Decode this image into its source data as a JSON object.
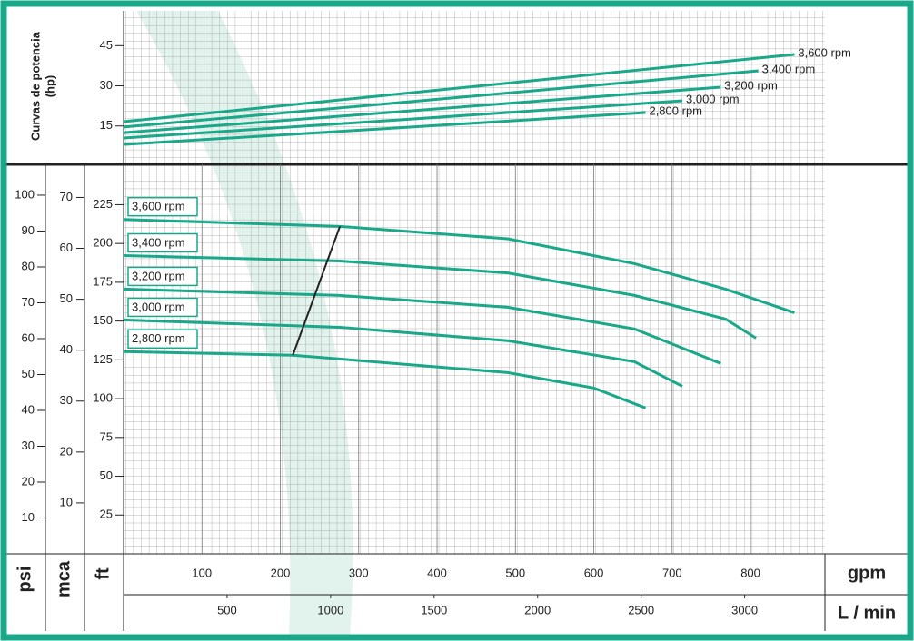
{
  "chart_data": [
    {
      "type": "line",
      "title_lines": [
        "Curvas de potencia",
        "(hp)"
      ],
      "xlim": [
        0,
        895
      ],
      "ylim": [
        1,
        58
      ],
      "yticks": [
        15,
        30,
        45
      ],
      "series": [
        {
          "name": "3,600 rpm",
          "color": "#1aa88a",
          "x": [
            0,
            428,
            856
          ],
          "values": [
            16.6,
            29.2,
            41.7
          ]
        },
        {
          "name": "3,400 rpm",
          "color": "#1aa88a",
          "x": [
            0,
            405,
            810
          ],
          "values": [
            14.6,
            25.1,
            35.6
          ]
        },
        {
          "name": "3,200 rpm",
          "color": "#1aa88a",
          "x": [
            0,
            381,
            762
          ],
          "values": [
            12.5,
            21,
            29.5
          ]
        },
        {
          "name": "3,000 rpm",
          "color": "#1aa88a",
          "x": [
            0,
            357,
            713
          ],
          "values": [
            10.5,
            17.4,
            24.4
          ]
        },
        {
          "name": "2,800 rpm",
          "color": "#1aa88a",
          "x": [
            0,
            333,
            666
          ],
          "values": [
            8.1,
            14,
            20
          ]
        }
      ]
    },
    {
      "type": "line",
      "xlabel": "gpm",
      "xlim": [
        0,
        895
      ],
      "xticks": [
        100,
        200,
        300,
        400,
        500,
        600,
        700,
        800
      ],
      "x2label": "L / min",
      "x2lim": [
        0,
        3388
      ],
      "x2ticks": [
        500,
        1000,
        1500,
        2000,
        2500,
        3000
      ],
      "ylabel": "ft",
      "ylim": [
        0,
        251
      ],
      "yticks": [
        25,
        50,
        75,
        100,
        125,
        150,
        175,
        200,
        225
      ],
      "extra_axes": [
        {
          "label": "psi",
          "lim": [
            0,
            108.6
          ],
          "ticks": [
            10,
            20,
            30,
            40,
            50,
            60,
            70,
            80,
            90,
            100
          ]
        },
        {
          "label": "mca",
          "lim": [
            0,
            76.5
          ],
          "ticks": [
            10,
            20,
            30,
            40,
            50,
            60,
            70
          ]
        }
      ],
      "series": [
        {
          "name": "3,600 rpm",
          "color": "#1aa88a",
          "x": [
            0,
            276,
            490,
            652,
            768,
            856
          ],
          "values": [
            215.5,
            211,
            203,
            187,
            170.6,
            155.4
          ]
        },
        {
          "name": "3,400 rpm",
          "color": "#1aa88a",
          "x": [
            0,
            276,
            490,
            652,
            768,
            807
          ],
          "values": [
            192.2,
            188.7,
            181,
            166.5,
            151.3,
            139
          ]
        },
        {
          "name": "3,200 rpm",
          "color": "#1aa88a",
          "x": [
            0,
            276,
            490,
            652,
            762
          ],
          "values": [
            170.6,
            166.5,
            158.9,
            144.9,
            122.7
          ]
        },
        {
          "name": "3,000 rpm",
          "color": "#1aa88a",
          "x": [
            0,
            276,
            490,
            652,
            713
          ],
          "values": [
            150.7,
            146,
            137.3,
            123.8,
            108
          ]
        },
        {
          "name": "2,800 rpm",
          "color": "#1aa88a",
          "x": [
            0,
            216,
            490,
            600,
            666
          ],
          "values": [
            130.3,
            128,
            116.8,
            106.9,
            94
          ]
        }
      ],
      "bep_line": {
        "color": "#222222",
        "x": [
          216,
          276
        ],
        "values": [
          128,
          211
        ]
      }
    }
  ]
}
